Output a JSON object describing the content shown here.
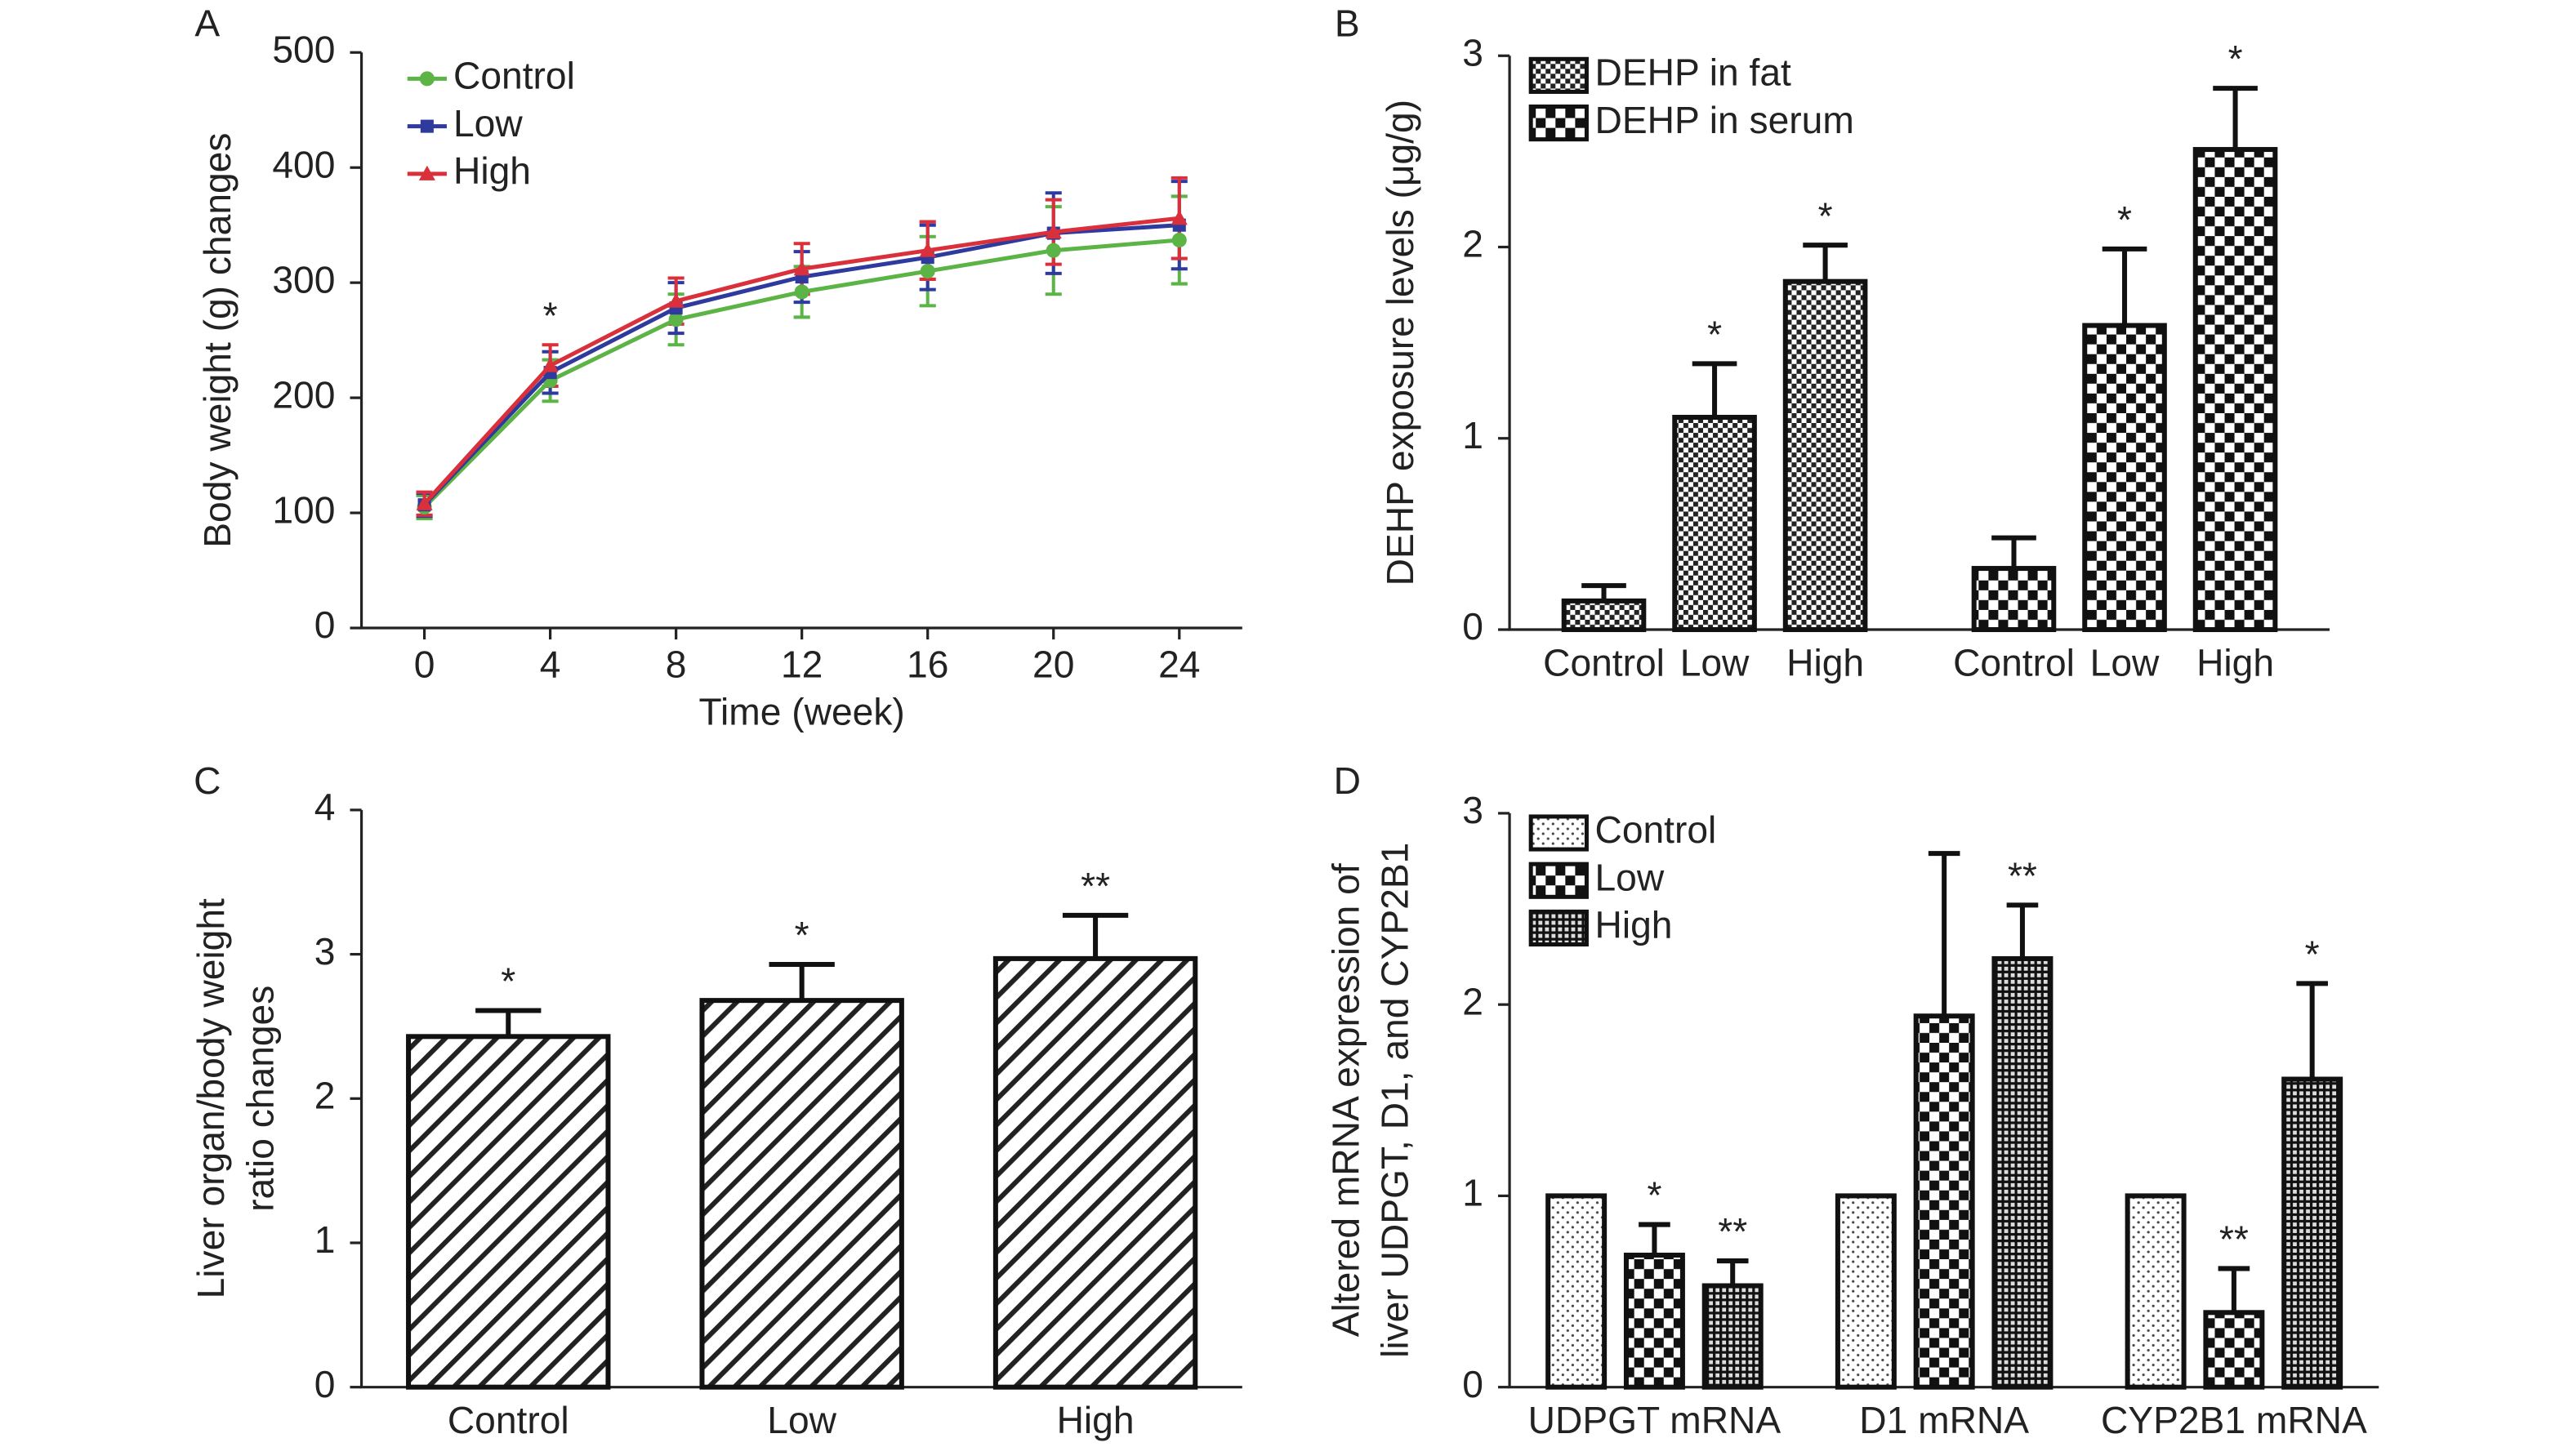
{
  "chart_data": [
    {
      "type": "line",
      "panel": "A",
      "xlabel": "Time (week)",
      "ylabel": "Body weight (g) changes",
      "x": [
        0,
        4,
        8,
        12,
        16,
        20,
        24
      ],
      "xlim": [
        -2,
        26
      ],
      "xticks": [
        0,
        4,
        8,
        12,
        16,
        20,
        24
      ],
      "ylim": [
        0,
        500
      ],
      "yticks": [
        0,
        100,
        200,
        300,
        400,
        500
      ],
      "legend": "top-left",
      "series": [
        {
          "name": "Control",
          "color": "#5cb346",
          "marker": "circle",
          "values": [
            105,
            215,
            268,
            292,
            310,
            328,
            337
          ],
          "errors": [
            10,
            18,
            22,
            22,
            30,
            38,
            38
          ]
        },
        {
          "name": "Low",
          "color": "#2f3a9e",
          "marker": "square",
          "values": [
            107,
            222,
            278,
            305,
            322,
            343,
            350
          ],
          "errors": [
            10,
            18,
            22,
            22,
            28,
            35,
            38
          ]
        },
        {
          "name": "High",
          "color": "#d9303c",
          "marker": "triangle",
          "values": [
            108,
            228,
            284,
            312,
            328,
            344,
            356
          ],
          "errors": [
            10,
            18,
            20,
            22,
            25,
            28,
            35
          ]
        }
      ],
      "annotations": [
        {
          "text": "*",
          "x": 4
        }
      ]
    },
    {
      "type": "bar",
      "panel": "B",
      "group_by": "series",
      "ylabel": "DEHP exposure levels (μg/g)",
      "categories": [
        "Control",
        "Low",
        "High"
      ],
      "ylim": [
        0,
        3
      ],
      "yticks": [
        0,
        1,
        2,
        3
      ],
      "legend": "top-left",
      "series": [
        {
          "name": "DEHP in fat",
          "pattern": "checker-fine",
          "values": [
            0.15,
            1.11,
            1.82
          ],
          "errors": [
            0.08,
            0.28,
            0.19
          ],
          "annotations": [
            null,
            "*",
            "*"
          ]
        },
        {
          "name": "DEHP in serum",
          "pattern": "checker-big",
          "values": [
            0.32,
            1.59,
            2.51
          ],
          "errors": [
            0.16,
            0.4,
            0.32
          ],
          "annotations": [
            null,
            "*",
            "*"
          ]
        }
      ]
    },
    {
      "type": "bar",
      "panel": "C",
      "group_by": "category",
      "ylabel": [
        "Liver organ/body weight",
        "ratio changes"
      ],
      "categories": [
        "Control",
        "Low",
        "High"
      ],
      "ylim": [
        0,
        4
      ],
      "yticks": [
        0,
        1,
        2,
        3,
        4
      ],
      "series": [
        {
          "pattern": "hatch",
          "values": [
            2.43,
            2.68,
            2.97
          ],
          "errors": [
            0.18,
            0.25,
            0.3
          ],
          "annotations": [
            "*",
            "*",
            "**"
          ]
        }
      ]
    },
    {
      "type": "bar",
      "panel": "D",
      "group_by": "category",
      "ylabel": [
        "Altered mRNA expression of",
        "liver UDPGT, D1, and CYP2B1"
      ],
      "categories": [
        "UDPGT mRNA",
        "D1 mRNA",
        "CYP2B1 mRNA"
      ],
      "ylim": [
        0,
        3
      ],
      "yticks": [
        0,
        1,
        2,
        3
      ],
      "legend": "top-left",
      "series": [
        {
          "name": "Control",
          "pattern": "dots",
          "values": [
            1,
            1,
            1
          ],
          "errors": [
            null,
            null,
            null
          ],
          "annotations": [
            null,
            null,
            null
          ]
        },
        {
          "name": "Low",
          "pattern": "checker-big",
          "values": [
            0.69,
            1.94,
            0.39
          ],
          "errors": [
            0.16,
            0.85,
            0.23
          ],
          "annotations": [
            "*",
            null,
            "**"
          ]
        },
        {
          "name": "High",
          "pattern": "grid",
          "values": [
            0.53,
            2.24,
            1.61
          ],
          "errors": [
            0.13,
            0.28,
            0.5
          ],
          "annotations": [
            "**",
            "**",
            "*"
          ]
        }
      ]
    }
  ]
}
